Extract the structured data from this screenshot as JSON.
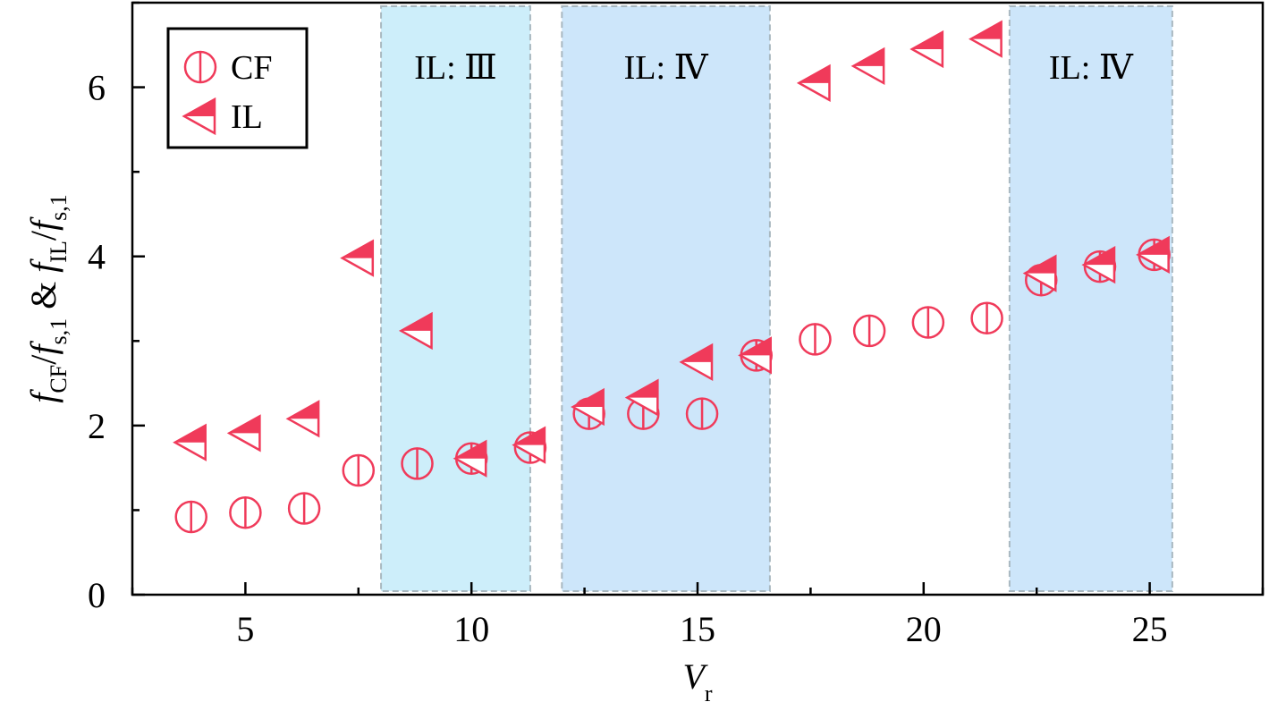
{
  "chart_data": {
    "type": "scatter",
    "xlabel": {
      "main": "V",
      "sub": "r"
    },
    "ylabel": {
      "parts": [
        {
          "t": "f",
          "style": "italic"
        },
        {
          "t": "CF",
          "style": "sub"
        },
        {
          "t": "/",
          "style": "normal"
        },
        {
          "t": "f",
          "style": "italic"
        },
        {
          "t": "s,1",
          "style": "sub"
        },
        {
          "t": " & ",
          "style": "normal"
        },
        {
          "t": "f",
          "style": "italic"
        },
        {
          "t": "IL",
          "style": "sub"
        },
        {
          "t": "/",
          "style": "normal"
        },
        {
          "t": "f",
          "style": "italic"
        },
        {
          "t": "s,1",
          "style": "sub"
        }
      ]
    },
    "xlim": [
      2.5,
      27.5
    ],
    "ylim": [
      0,
      7
    ],
    "x_ticks": [
      5,
      10,
      15,
      20,
      25
    ],
    "x_tick_labels": [
      "5",
      "10",
      "15",
      "20",
      "25"
    ],
    "x_minor_ticks": [
      2.5,
      7.5,
      12.5,
      17.5,
      22.5,
      27.5
    ],
    "y_ticks": [
      0,
      2,
      4,
      6
    ],
    "y_tick_labels": [
      "0",
      "2",
      "4",
      "6"
    ],
    "y_minor_ticks": [
      1,
      3,
      5,
      7
    ],
    "grid": false,
    "legend_position": "top-left",
    "regions": [
      {
        "x0": 8.0,
        "x1": 11.3,
        "label": "IL: Ⅲ",
        "color": "#cdeefa"
      },
      {
        "x0": 12.0,
        "x1": 16.6,
        "label": "IL: Ⅳ",
        "color": "#cde6fa"
      },
      {
        "x0": 21.9,
        "x1": 25.5,
        "label": "IL: Ⅳ",
        "color": "#cde6fa"
      }
    ],
    "series": [
      {
        "name": "CF",
        "marker": "circle-vline",
        "color": "#f03a5a",
        "x": [
          3.8,
          5.0,
          6.3,
          7.5,
          8.8,
          10.0,
          11.3,
          12.6,
          13.8,
          15.1,
          16.3,
          17.6,
          18.8,
          20.1,
          21.4,
          22.6,
          23.9,
          25.1
        ],
        "y": [
          0.92,
          0.97,
          1.02,
          1.47,
          1.55,
          1.61,
          1.74,
          2.14,
          2.14,
          2.14,
          2.83,
          3.02,
          3.12,
          3.22,
          3.27,
          3.72,
          3.88,
          4.02
        ]
      },
      {
        "name": "IL",
        "marker": "left-triangle-half",
        "color": "#f03a5a",
        "x": [
          3.8,
          5.0,
          6.3,
          7.5,
          8.8,
          10.0,
          11.3,
          12.6,
          13.8,
          15.0,
          16.3,
          17.6,
          18.8,
          20.1,
          21.4,
          22.6,
          23.9,
          25.1
        ],
        "y": [
          1.8,
          1.91,
          2.08,
          3.98,
          3.12,
          1.61,
          1.77,
          2.22,
          2.33,
          2.75,
          2.83,
          6.05,
          6.25,
          6.45,
          6.57,
          3.8,
          3.9,
          4.02
        ]
      }
    ],
    "colors": {
      "marker": "#f03a5a",
      "region_light": "#cdeefa",
      "region": "#cde6fa",
      "region_border": "#a9b8c0"
    }
  }
}
